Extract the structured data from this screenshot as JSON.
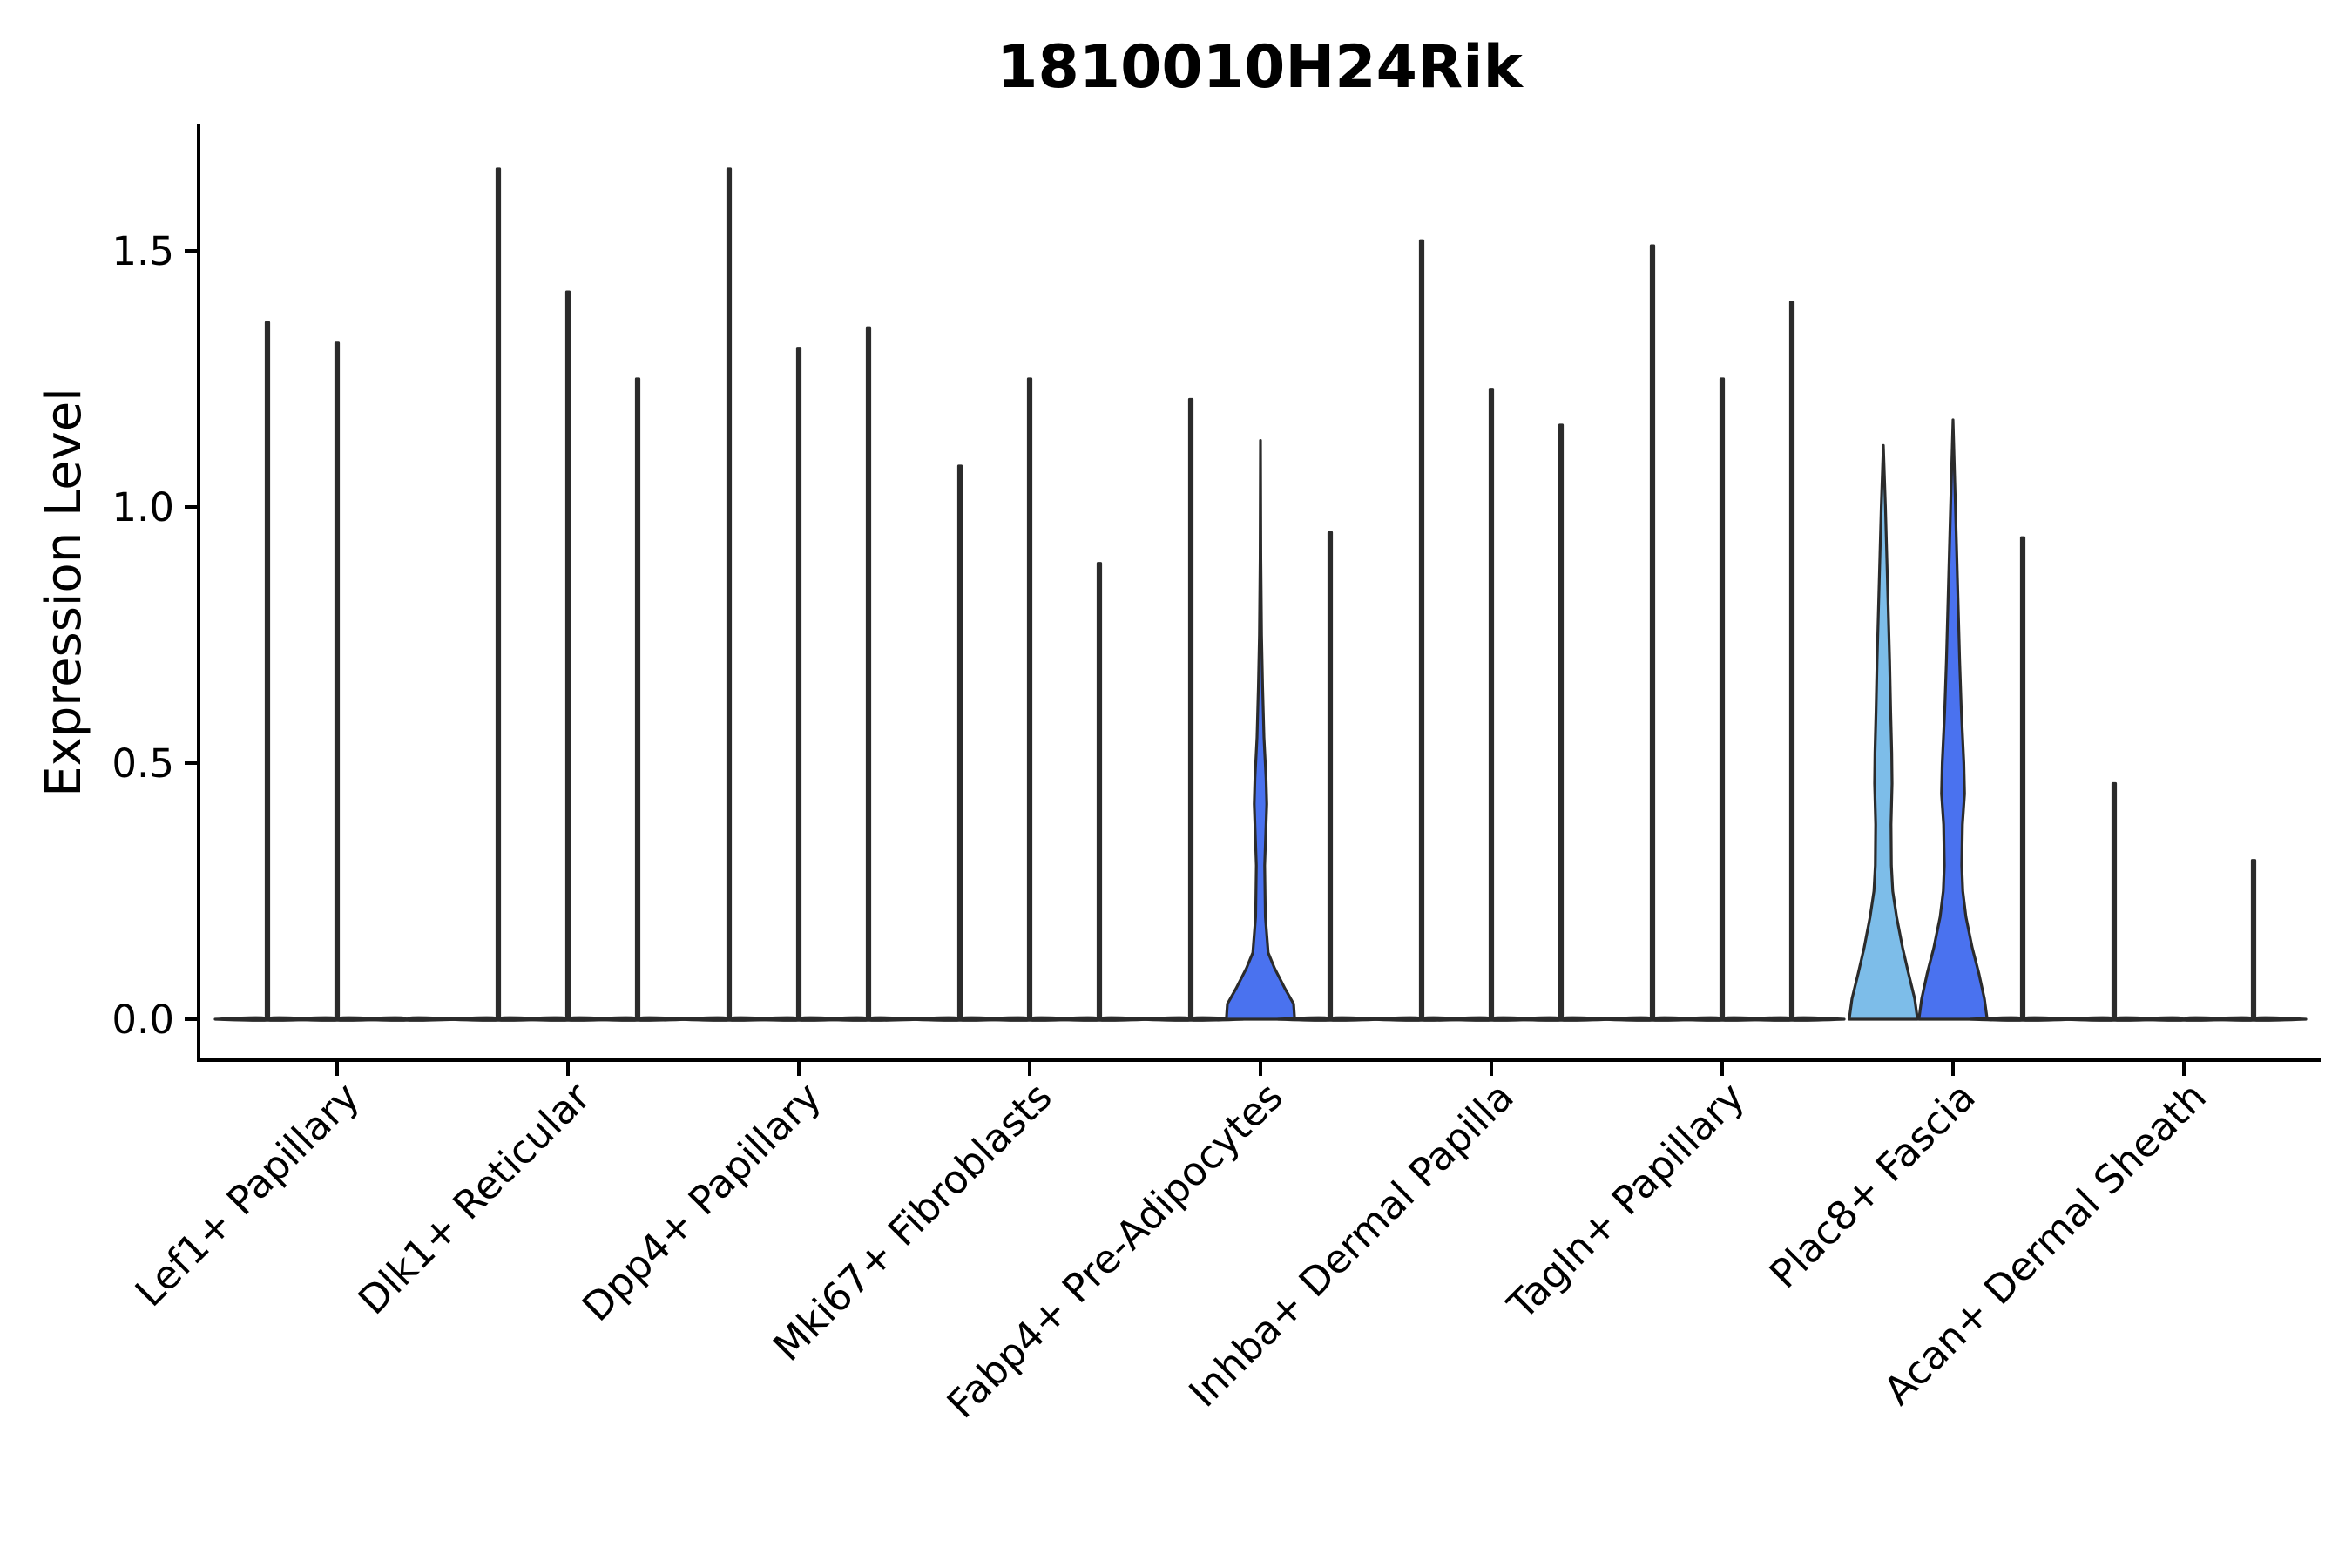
{
  "chart_data": {
    "type": "violin",
    "title": "1810010H24Rik",
    "xlabel": "",
    "ylabel": "Expression Level",
    "ylim": [
      -0.085,
      1.75
    ],
    "yticks": [
      0.0,
      0.5,
      1.0,
      1.5
    ],
    "ytick_labels": [
      "0.0",
      "0.5",
      "1.0",
      "1.5"
    ],
    "grid": false,
    "legend": "none",
    "categories": [
      "Lef1+ Papillary",
      "Dlk1+ Reticular",
      "Dpp4+ Papillary",
      "Mki67+ Fibroblasts",
      "Fabp4+ Pre-Adipocytes",
      "Inhba+ Dermal Papilla",
      "Tagln+ Papillary",
      "Plac8+ Fascia",
      "Acan+ Dermal Sheath"
    ],
    "series_colors": [
      "#6f9fd8",
      "#4f7fe8",
      "#3b68e0"
    ],
    "groups": [
      {
        "category": "Lef1+ Papillary",
        "violins": [
          {
            "max": 1.36,
            "fill": "#87b4e6",
            "shape": []
          },
          {
            "max": 1.32,
            "fill": "#5a86e6",
            "shape": []
          },
          {
            "max": 0.0,
            "fill": "#3d6ce8",
            "shape": []
          }
        ]
      },
      {
        "category": "Dlk1+ Reticular",
        "violins": [
          {
            "max": 1.66,
            "fill": "#87b4e6",
            "shape": []
          },
          {
            "max": 1.42,
            "fill": "#5a86e6",
            "shape": []
          },
          {
            "max": 1.25,
            "fill": "#3d6ce8",
            "shape": []
          }
        ]
      },
      {
        "category": "Dpp4+ Papillary",
        "violins": [
          {
            "max": 1.66,
            "fill": "#87b4e6",
            "shape": []
          },
          {
            "max": 1.31,
            "fill": "#5a86e6",
            "shape": []
          },
          {
            "max": 1.35,
            "fill": "#3d6ce8",
            "shape": []
          }
        ]
      },
      {
        "category": "Mki67+ Fibroblasts",
        "violins": [
          {
            "max": 1.08,
            "fill": "#87b4e6",
            "shape": []
          },
          {
            "max": 1.25,
            "fill": "#5a86e6",
            "shape": []
          },
          {
            "max": 0.89,
            "fill": "#3d6ce8",
            "shape": []
          }
        ]
      },
      {
        "category": "Fabp4+ Pre-Adipocytes",
        "violins": [
          {
            "max": 1.21,
            "fill": "#87b4e6",
            "shape": []
          },
          {
            "max": 1.13,
            "fill": "#4a72ef",
            "shape": [
              [
                0.0,
                0.98
              ],
              [
                0.03,
                0.95
              ],
              [
                0.06,
                0.7
              ],
              [
                0.1,
                0.4
              ],
              [
                0.13,
                0.22
              ],
              [
                0.2,
                0.14
              ],
              [
                0.3,
                0.12
              ],
              [
                0.36,
                0.15
              ],
              [
                0.42,
                0.18
              ],
              [
                0.47,
                0.16
              ],
              [
                0.55,
                0.1
              ],
              [
                0.65,
                0.06
              ],
              [
                0.75,
                0.03
              ],
              [
                0.9,
                0.01
              ],
              [
                1.13,
                0.0
              ]
            ]
          },
          {
            "max": 0.95,
            "fill": "#3d6ce8",
            "shape": []
          }
        ]
      },
      {
        "category": "Inhba+ Dermal Papilla",
        "violins": [
          {
            "max": 1.52,
            "fill": "#87b4e6",
            "shape": []
          },
          {
            "max": 1.23,
            "fill": "#5a86e6",
            "shape": []
          },
          {
            "max": 1.16,
            "fill": "#3d6ce8",
            "shape": []
          }
        ]
      },
      {
        "category": "Tagln+ Papillary",
        "violins": [
          {
            "max": 1.51,
            "fill": "#87b4e6",
            "shape": []
          },
          {
            "max": 1.25,
            "fill": "#5a86e6",
            "shape": []
          },
          {
            "max": 1.4,
            "fill": "#3d6ce8",
            "shape": []
          }
        ]
      },
      {
        "category": "Plac8+ Fascia",
        "violins": [
          {
            "max": 1.12,
            "fill": "#7dbde9",
            "shape": [
              [
                0.0,
                0.98
              ],
              [
                0.04,
                0.9
              ],
              [
                0.09,
                0.72
              ],
              [
                0.14,
                0.55
              ],
              [
                0.2,
                0.38
              ],
              [
                0.25,
                0.27
              ],
              [
                0.3,
                0.23
              ],
              [
                0.38,
                0.22
              ],
              [
                0.46,
                0.25
              ],
              [
                0.52,
                0.24
              ],
              [
                0.6,
                0.21
              ],
              [
                0.7,
                0.18
              ],
              [
                0.8,
                0.14
              ],
              [
                0.9,
                0.1
              ],
              [
                1.0,
                0.06
              ],
              [
                1.12,
                0.0
              ]
            ]
          },
          {
            "max": 1.17,
            "fill": "#4a72ef",
            "shape": [
              [
                0.0,
                0.98
              ],
              [
                0.04,
                0.9
              ],
              [
                0.09,
                0.74
              ],
              [
                0.14,
                0.55
              ],
              [
                0.2,
                0.37
              ],
              [
                0.25,
                0.28
              ],
              [
                0.3,
                0.25
              ],
              [
                0.38,
                0.27
              ],
              [
                0.44,
                0.33
              ],
              [
                0.5,
                0.31
              ],
              [
                0.6,
                0.24
              ],
              [
                0.7,
                0.19
              ],
              [
                0.8,
                0.15
              ],
              [
                0.9,
                0.11
              ],
              [
                1.0,
                0.07
              ],
              [
                1.17,
                0.0
              ]
            ]
          },
          {
            "max": 0.94,
            "fill": "#3d6ce8",
            "shape": []
          }
        ]
      },
      {
        "category": "Acan+ Dermal Sheath",
        "violins": [
          {
            "max": 0.46,
            "fill": "#87b4e6",
            "shape": []
          },
          {
            "max": 0.0,
            "fill": "#5a86e6",
            "shape": []
          },
          {
            "max": 0.31,
            "fill": "#3d6ce8",
            "shape": []
          }
        ]
      }
    ]
  }
}
